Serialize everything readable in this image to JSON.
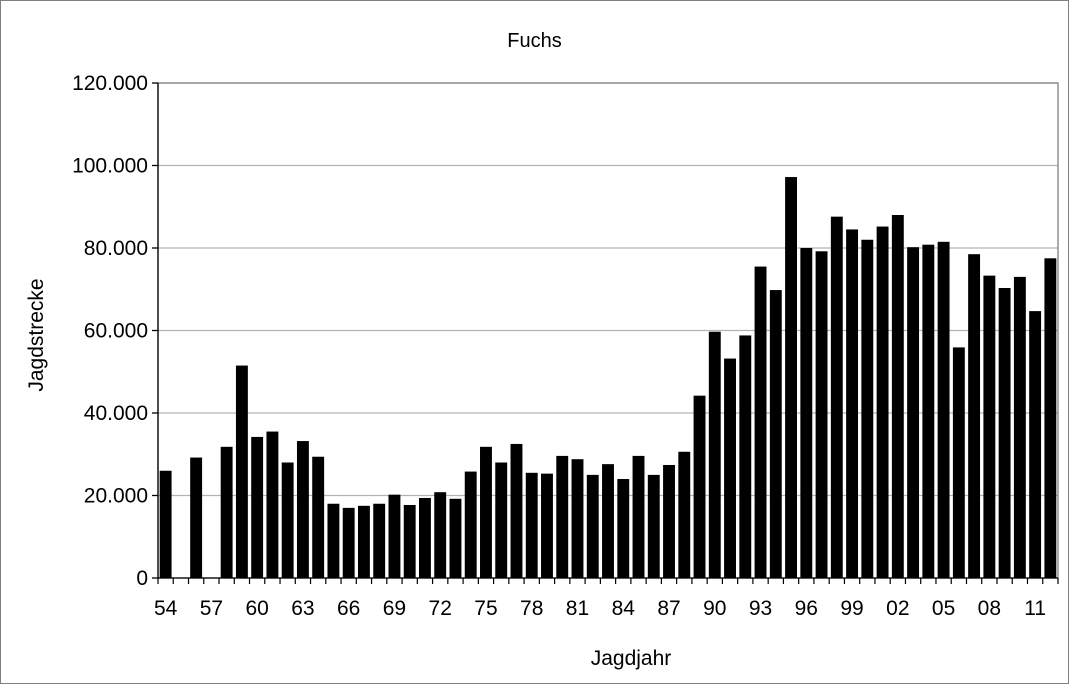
{
  "chart_data": {
    "type": "bar",
    "title": "Fuchs",
    "xlabel": "Jagdjahr",
    "ylabel": "Jagdstrecke",
    "ylim": [
      0,
      120000
    ],
    "yticks": [
      0,
      20000,
      40000,
      60000,
      80000,
      100000,
      120000
    ],
    "ytick_labels": [
      "0",
      "20.000",
      "40.000",
      "60.000",
      "80.000",
      "100.000",
      "120.000"
    ],
    "categories": [
      "54",
      "55",
      "56",
      "57",
      "58",
      "59",
      "60",
      "61",
      "62",
      "63",
      "64",
      "65",
      "66",
      "67",
      "68",
      "69",
      "70",
      "71",
      "72",
      "73",
      "74",
      "75",
      "76",
      "77",
      "78",
      "79",
      "80",
      "81",
      "82",
      "83",
      "84",
      "85",
      "86",
      "87",
      "88",
      "89",
      "90",
      "91",
      "92",
      "93",
      "94",
      "95",
      "96",
      "97",
      "98",
      "99",
      "00",
      "01",
      "02",
      "03",
      "04",
      "05",
      "06",
      "07",
      "08",
      "09",
      "10",
      "11",
      "12"
    ],
    "xtick_labels": [
      "54",
      "57",
      "60",
      "63",
      "66",
      "69",
      "72",
      "75",
      "78",
      "81",
      "84",
      "87",
      "90",
      "93",
      "96",
      "99",
      "02",
      "05",
      "08",
      "11"
    ],
    "values": [
      26000,
      0,
      29200,
      0,
      31800,
      51500,
      34200,
      35500,
      28000,
      33200,
      29400,
      18000,
      17000,
      17500,
      18000,
      20200,
      17700,
      19400,
      20800,
      19200,
      25800,
      31800,
      28000,
      32500,
      25500,
      25300,
      29600,
      28800,
      25000,
      27600,
      24000,
      29600,
      25000,
      27400,
      30600,
      44200,
      59700,
      53200,
      58800,
      75500,
      69800,
      97200,
      80000,
      79200,
      87600,
      84500,
      82000,
      85200,
      88000,
      80200,
      80800,
      81500,
      55900,
      78500,
      73300,
      70300,
      73000,
      64700,
      77500
    ],
    "grid": true,
    "bar_color": "#000000",
    "grid_color": "#b3b3b3"
  }
}
